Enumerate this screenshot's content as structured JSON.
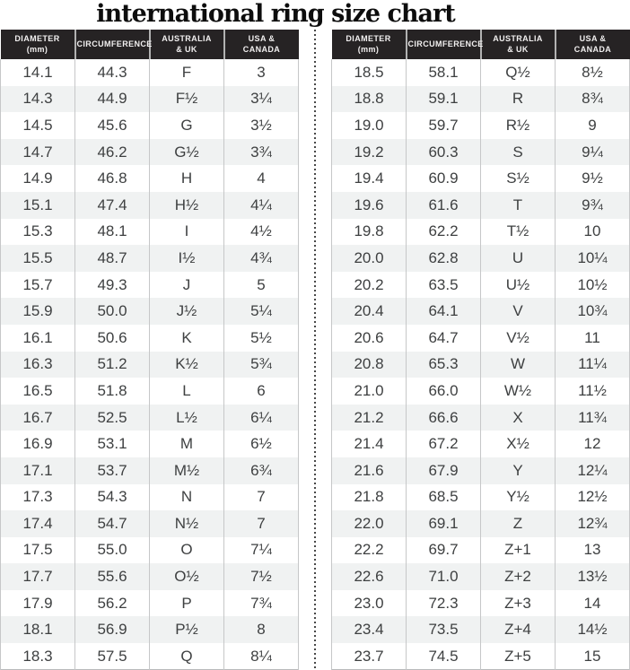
{
  "title": "international ring size chart",
  "colors": {
    "header_bg": "#262324",
    "header_text": "#f2f0f0",
    "row_alt_bg": "#f0f2f2",
    "body_text": "#3e4041",
    "border": "#c6c7c8",
    "bottom_border": "#b9babb",
    "divider_dot": "#484848",
    "title_color": "#0d0d0d"
  },
  "chart_data": [
    {
      "type": "table",
      "name": "ring-size-table-left",
      "columns": [
        {
          "l1": "DIAMETER",
          "l2": "(mm)"
        },
        {
          "l1": "CIRCUMFERENCE",
          "l2": ""
        },
        {
          "l1": "AUSTRALIA",
          "l2": "& UK"
        },
        {
          "l1": "USA &",
          "l2": "CANADA"
        }
      ],
      "rows": [
        [
          "14.1",
          "44.3",
          "F",
          "3"
        ],
        [
          "14.3",
          "44.9",
          "F½",
          "3¼"
        ],
        [
          "14.5",
          "45.6",
          "G",
          "3½"
        ],
        [
          "14.7",
          "46.2",
          "G½",
          "3¾"
        ],
        [
          "14.9",
          "46.8",
          "H",
          "4"
        ],
        [
          "15.1",
          "47.4",
          "H½",
          "4¼"
        ],
        [
          "15.3",
          "48.1",
          "I",
          "4½"
        ],
        [
          "15.5",
          "48.7",
          "I½",
          "4¾"
        ],
        [
          "15.7",
          "49.3",
          "J",
          "5"
        ],
        [
          "15.9",
          "50.0",
          "J½",
          "5¼"
        ],
        [
          "16.1",
          "50.6",
          "K",
          "5½"
        ],
        [
          "16.3",
          "51.2",
          "K½",
          "5¾"
        ],
        [
          "16.5",
          "51.8",
          "L",
          "6"
        ],
        [
          "16.7",
          "52.5",
          "L½",
          "6¼"
        ],
        [
          "16.9",
          "53.1",
          "M",
          "6½"
        ],
        [
          "17.1",
          "53.7",
          "M½",
          "6¾"
        ],
        [
          "17.3",
          "54.3",
          "N",
          "7"
        ],
        [
          "17.4",
          "54.7",
          "N½",
          "7"
        ],
        [
          "17.5",
          "55.0",
          "O",
          "7¼"
        ],
        [
          "17.7",
          "55.6",
          "O½",
          "7½"
        ],
        [
          "17.9",
          "56.2",
          "P",
          "7¾"
        ],
        [
          "18.1",
          "56.9",
          "P½",
          "8"
        ],
        [
          "18.3",
          "57.5",
          "Q",
          "8¼"
        ]
      ]
    },
    {
      "type": "table",
      "name": "ring-size-table-right",
      "columns": [
        {
          "l1": "DIAMETER",
          "l2": "(mm)"
        },
        {
          "l1": "CIRCUMFERENCE",
          "l2": ""
        },
        {
          "l1": "AUSTRALIA",
          "l2": "& UK"
        },
        {
          "l1": "USA &",
          "l2": "CANADA"
        }
      ],
      "rows": [
        [
          "18.5",
          "58.1",
          "Q½",
          "8½"
        ],
        [
          "18.8",
          "59.1",
          "R",
          "8¾"
        ],
        [
          "19.0",
          "59.7",
          "R½",
          "9"
        ],
        [
          "19.2",
          "60.3",
          "S",
          "9¼"
        ],
        [
          "19.4",
          "60.9",
          "S½",
          "9½"
        ],
        [
          "19.6",
          "61.6",
          "T",
          "9¾"
        ],
        [
          "19.8",
          "62.2",
          "T½",
          "10"
        ],
        [
          "20.0",
          "62.8",
          "U",
          "10¼"
        ],
        [
          "20.2",
          "63.5",
          "U½",
          "10½"
        ],
        [
          "20.4",
          "64.1",
          "V",
          "10¾"
        ],
        [
          "20.6",
          "64.7",
          "V½",
          "11"
        ],
        [
          "20.8",
          "65.3",
          "W",
          "11¼"
        ],
        [
          "21.0",
          "66.0",
          "W½",
          "11½"
        ],
        [
          "21.2",
          "66.6",
          "X",
          "11¾"
        ],
        [
          "21.4",
          "67.2",
          "X½",
          "12"
        ],
        [
          "21.6",
          "67.9",
          "Y",
          "12¼"
        ],
        [
          "21.8",
          "68.5",
          "Y½",
          "12½"
        ],
        [
          "22.0",
          "69.1",
          "Z",
          "12¾"
        ],
        [
          "22.2",
          "69.7",
          "Z+1",
          "13"
        ],
        [
          "22.6",
          "71.0",
          "Z+2",
          "13½"
        ],
        [
          "23.0",
          "72.3",
          "Z+3",
          "14"
        ],
        [
          "23.4",
          "73.5",
          "Z+4",
          "14½"
        ],
        [
          "23.7",
          "74.5",
          "Z+5",
          "15"
        ]
      ]
    }
  ]
}
